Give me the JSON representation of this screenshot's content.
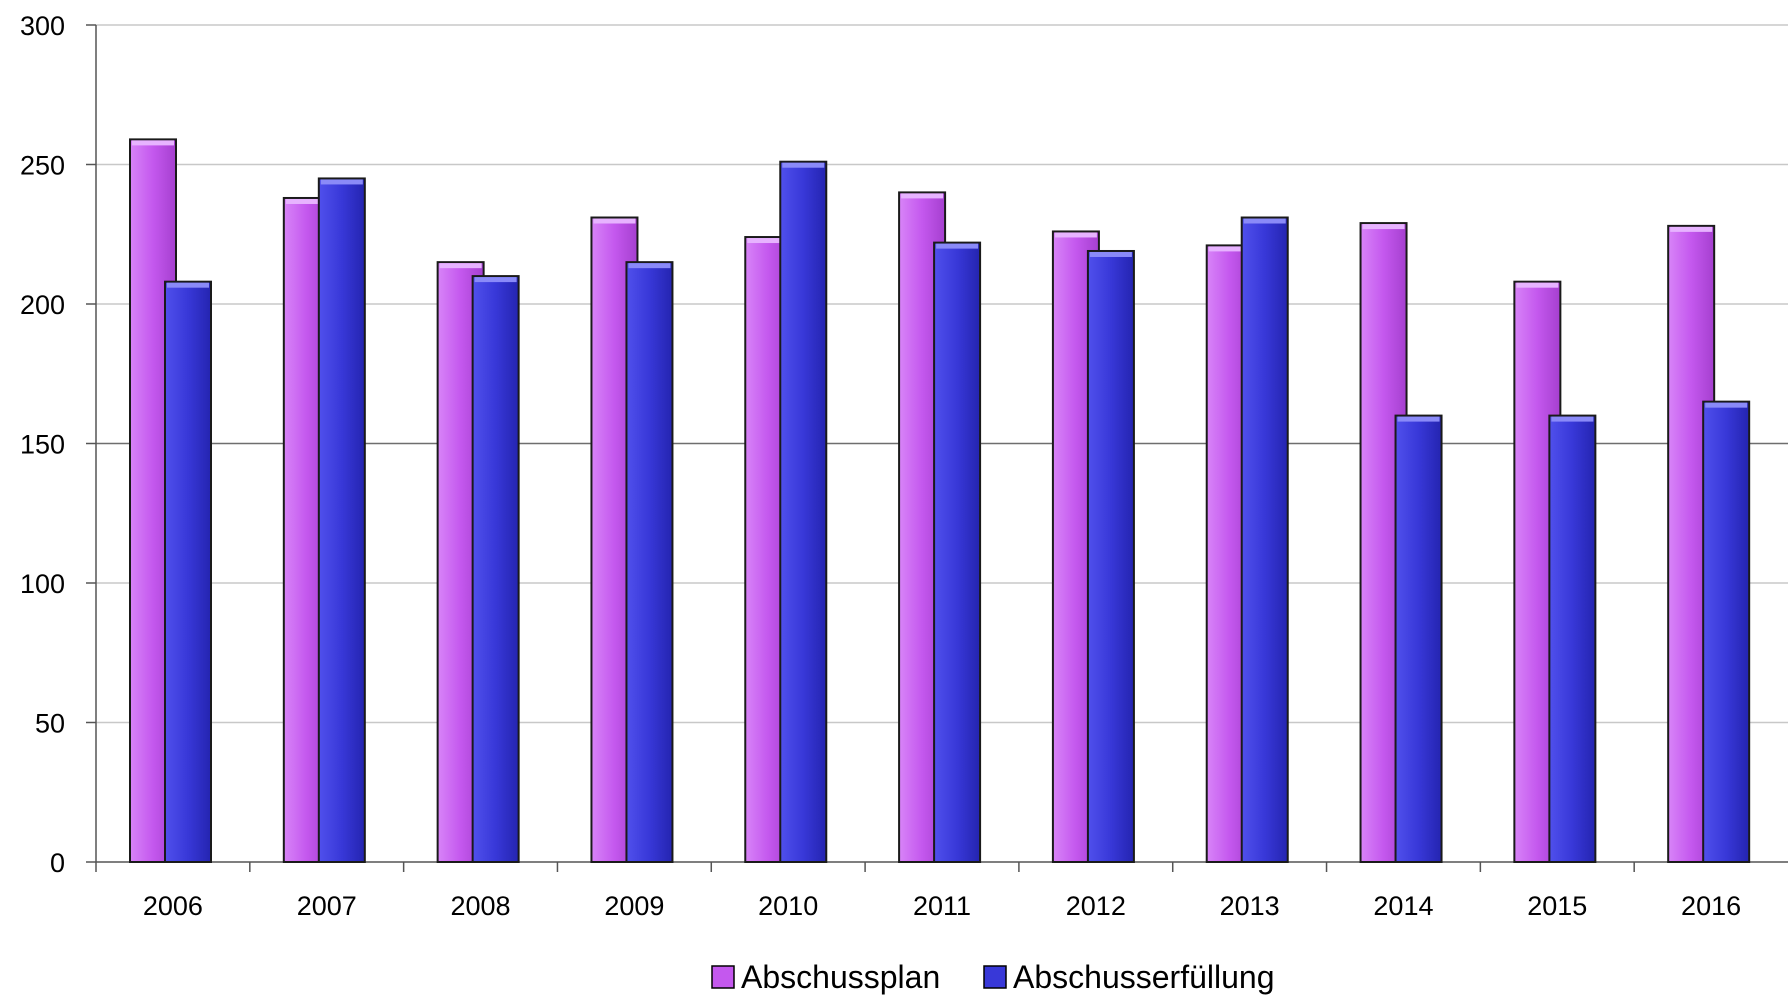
{
  "chart_data": {
    "type": "bar",
    "title": "",
    "xlabel": "",
    "ylabel": "",
    "categories": [
      "2006",
      "2007",
      "2008",
      "2009",
      "2010",
      "2011",
      "2012",
      "2013",
      "2014",
      "2015",
      "2016"
    ],
    "series": [
      {
        "name": "Abschussplan",
        "color": "#c458ee",
        "values": [
          259,
          238,
          215,
          231,
          224,
          240,
          226,
          221,
          229,
          208,
          228
        ]
      },
      {
        "name": "Abschusserfüllung",
        "color": "#3838d8",
        "values": [
          208,
          245,
          210,
          215,
          251,
          222,
          219,
          231,
          160,
          160,
          165
        ]
      }
    ],
    "ylim": [
      0,
      300
    ],
    "yticks": [
      "0",
      "50",
      "100",
      "150",
      "200",
      "250",
      "300"
    ],
    "grid": true,
    "legend_position": "bottom-center"
  }
}
